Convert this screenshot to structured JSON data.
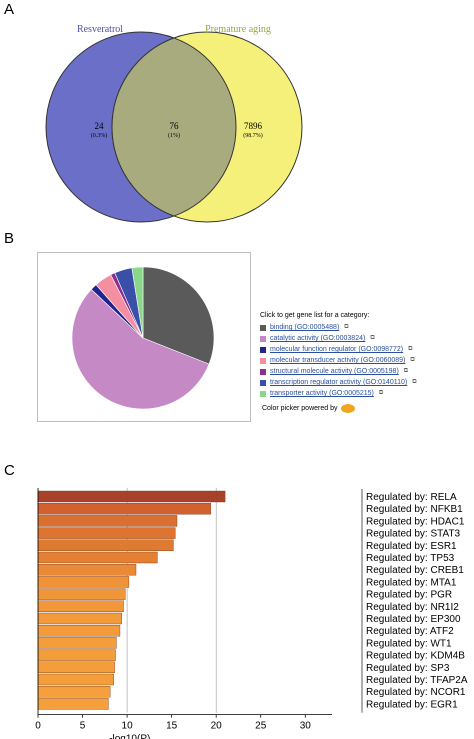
{
  "panels": {
    "a": "A",
    "b": "B",
    "c": "C"
  },
  "chart_data": [
    {
      "type": "venn",
      "sets": [
        {
          "name": "Resveratrol",
          "only_count": "24",
          "only_pct": "(0.3%)",
          "color": "#6b6fc7"
        },
        {
          "name": "Premature aging",
          "only_count": "7896",
          "only_pct": "(98.7%)",
          "color": "#f5f07a"
        }
      ],
      "intersection": {
        "count": "76",
        "pct": "(1%)",
        "color": "#a8ab7e"
      },
      "label_colors": {
        "left": "#4a50a8",
        "right": "#9aa53a"
      }
    },
    {
      "type": "pie",
      "legend_header": "Click to get gene list for a category:",
      "slices": [
        {
          "label": "binding (GO:0005488)",
          "value": 31,
          "color": "#5a5a5a"
        },
        {
          "label": "catalytic activity (GO:0003824)",
          "value": 56,
          "color": "#c58ac5"
        },
        {
          "label": "molecular function regulator (GO:0098772)",
          "value": 1.5,
          "color": "#23238e"
        },
        {
          "label": "molecular transducer activity (GO:0060089)",
          "value": 4,
          "color": "#f48fa1"
        },
        {
          "label": "structural molecule activity (GO:0005198)",
          "value": 1,
          "color": "#8e2d8e"
        },
        {
          "label": "transcription regulator activity (GO:0140110)",
          "value": 4,
          "color": "#3a4fa8"
        },
        {
          "label": "transporter activity (GO:0005215)",
          "value": 2.5,
          "color": "#8ad68a"
        }
      ],
      "color_picker_label": "Color picker powered by",
      "color_picker_logo": "Web Colors by VisiBone"
    },
    {
      "type": "bar",
      "orientation": "horizontal",
      "xlabel": "-log10(P)",
      "xlim": [
        0,
        33
      ],
      "xticks": [
        "0",
        "5",
        "10",
        "15",
        "20",
        "25",
        "30"
      ],
      "categories": [
        "Regulated by: RELA",
        "Regulated by: NFKB1",
        "Regulated by: HDAC1",
        "Regulated by: STAT3",
        "Regulated by: ESR1",
        "Regulated by: TP53",
        "Regulated by: CREB1",
        "Regulated by: MTA1",
        "Regulated by: PGR",
        "Regulated by: NR1I2",
        "Regulated by: EP300",
        "Regulated by: ATF2",
        "Regulated by: WT1",
        "Regulated by: KDM4B",
        "Regulated by: SP3",
        "Regulated by: TFAP2A",
        "Regulated by: NCOR1",
        "Regulated by: EGR1"
      ],
      "values": [
        21.0,
        19.4,
        15.6,
        15.4,
        15.2,
        13.4,
        11.0,
        10.2,
        9.8,
        9.6,
        9.4,
        9.2,
        8.8,
        8.7,
        8.6,
        8.5,
        8.1,
        7.9
      ],
      "colors": [
        "#a8412a",
        "#d2612f",
        "#d9702f",
        "#dd7530",
        "#df7a31",
        "#e47f33",
        "#eb8a36",
        "#ef9238",
        "#f19638",
        "#f2983a",
        "#f39a3a",
        "#f39b3a",
        "#f49d3b",
        "#f49d3b",
        "#f49e3b",
        "#f49e3b",
        "#f5a03c",
        "#f5a03c"
      ],
      "grid_x": [
        10,
        20
      ]
    }
  ]
}
